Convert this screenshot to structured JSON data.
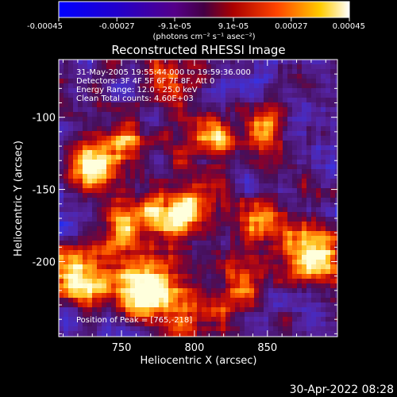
{
  "chart_data": {
    "type": "heatmap",
    "title": "Reconstructed RHESSI Image",
    "xlabel": "Heliocentric X (arcsec)",
    "ylabel": "Heliocentric Y (arcsec)",
    "xlim": [
      707,
      898
    ],
    "ylim": [
      -252,
      -60
    ],
    "xticks": [
      750,
      800,
      850
    ],
    "yticks": [
      -100,
      -150,
      -200
    ],
    "colorbar": {
      "label": "(photons cm⁻² s⁻¹ asec⁻²)",
      "ticks": [
        "-0.00045",
        "-0.00027",
        "-9.1e-05",
        "9.1e-05",
        "0.00027",
        "0.00045"
      ],
      "range": [
        -0.00045,
        0.00045
      ],
      "colormap": "hot-diverging"
    },
    "annotations": [
      "31-May-2005 19:55:44.000 to 19:59:36.000",
      "Detectors: 3F 4F 5F 6F 7F 8F, Att 0",
      "Energy Range: 12.0 - 25.0 keV",
      "Clean    Total counts: 4.60E+03"
    ],
    "peak_label": "Position of Peak = [765,-218]",
    "peak": [
      765,
      -218
    ],
    "sources": [
      {
        "x": 765,
        "y": -218,
        "intensity": 1.0
      },
      {
        "x": 718,
        "y": -212,
        "intensity": 0.85
      },
      {
        "x": 755,
        "y": -175,
        "intensity": 0.7
      },
      {
        "x": 790,
        "y": -165,
        "intensity": 0.7
      },
      {
        "x": 810,
        "y": -115,
        "intensity": 0.65
      },
      {
        "x": 745,
        "y": -120,
        "intensity": 0.6
      },
      {
        "x": 725,
        "y": -140,
        "intensity": 0.6
      },
      {
        "x": 880,
        "y": -195,
        "intensity": 0.75
      },
      {
        "x": 845,
        "y": -170,
        "intensity": 0.5
      },
      {
        "x": 850,
        "y": -110,
        "intensity": 0.45
      },
      {
        "x": 830,
        "y": -225,
        "intensity": 0.5
      },
      {
        "x": 780,
        "y": -70,
        "intensity": 0.45
      },
      {
        "x": 790,
        "y": -235,
        "intensity": 0.35
      }
    ]
  },
  "footer_date": "30-Apr-2022 08:28",
  "colors": {
    "background": "#000000",
    "text": "#ffffff"
  }
}
